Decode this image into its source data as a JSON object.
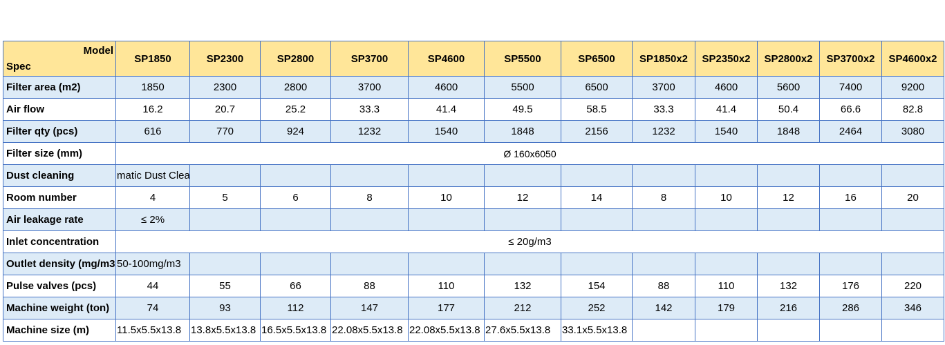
{
  "header": {
    "corner_model": "Model",
    "corner_spec": "Spec",
    "models": [
      "SP1850",
      "SP2300",
      "SP2800",
      "SP3700",
      "SP4600",
      "SP5500",
      "SP6500",
      "SP1850x2",
      "SP2350x2",
      "SP2800x2",
      "SP3700x2",
      "SP4600x2"
    ]
  },
  "rows": {
    "filter_area": {
      "label": "Filter area (m2)",
      "values": [
        "1850",
        "2300",
        "2800",
        "3700",
        "4600",
        "5500",
        "6500",
        "3700",
        "4600",
        "5600",
        "7400",
        "9200"
      ]
    },
    "air_flow": {
      "label": "Air flow",
      "values": [
        "16.2",
        "20.7",
        "25.2",
        "33.3",
        "41.4",
        "49.5",
        "58.5",
        "33.3",
        "41.4",
        "50.4",
        "66.6",
        "82.8"
      ]
    },
    "filter_qty": {
      "label": "Filter qty (pcs)",
      "values": [
        "616",
        "770",
        "924",
        "1232",
        "1540",
        "1848",
        "2156",
        "1232",
        "1540",
        "1848",
        "2464",
        "3080"
      ]
    },
    "filter_size": {
      "label": "Filter size (mm)",
      "value": "Ø 160x6050"
    },
    "dust_cleaning": {
      "label": "Dust cleaning",
      "value": "matic Dust Cleaning"
    },
    "room_number": {
      "label": "Room number",
      "values": [
        "4",
        "5",
        "6",
        "8",
        "10",
        "12",
        "14",
        "8",
        "10",
        "12",
        "16",
        "20"
      ]
    },
    "air_leakage": {
      "label": "Air leakage rate",
      "value": "≤ 2%"
    },
    "inlet_concentration": {
      "label": "Inlet concentration",
      "value": "≤ 20g/m3"
    },
    "outlet_density": {
      "label": "Outlet density (mg/m3",
      "value": "50-100mg/m3"
    },
    "pulse_valves": {
      "label": "Pulse valves (pcs)",
      "values": [
        "44",
        "55",
        "66",
        "88",
        "110",
        "132",
        "154",
        "88",
        "110",
        "132",
        "176",
        "220"
      ]
    },
    "machine_weight": {
      "label": "Machine weight (ton)",
      "values": [
        "74",
        "93",
        "112",
        "147",
        "177",
        "212",
        "252",
        "142",
        "179",
        "216",
        "286",
        "346"
      ]
    },
    "machine_size": {
      "label": "Machine size (m)",
      "values": [
        "11.5x5.5x13.8",
        "13.8x5.5x13.8",
        "16.5x5.5x13.8",
        "22.08x5.5x13.8",
        "22.08x5.5x13.8",
        "27.6x5.5x13.8",
        "33.1x5.5x13.8",
        "",
        "",
        "",
        "",
        ""
      ]
    }
  }
}
